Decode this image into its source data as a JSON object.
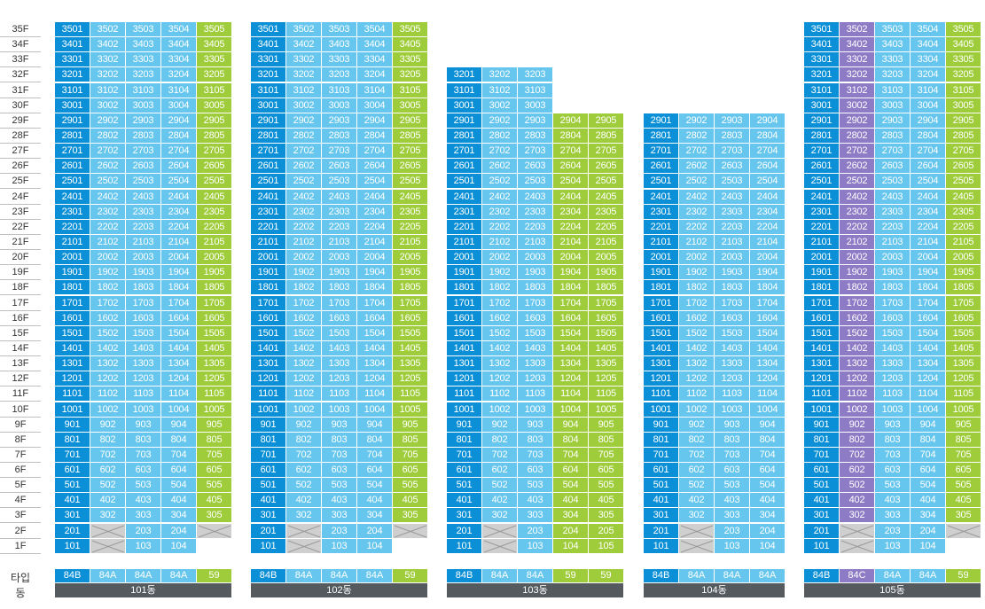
{
  "floor_labels": [
    "35F",
    "34F",
    "33F",
    "32F",
    "31F",
    "30F",
    "29F",
    "28F",
    "27F",
    "26F",
    "25F",
    "24F",
    "23F",
    "22F",
    "21F",
    "20F",
    "19F",
    "18F",
    "17F",
    "16F",
    "15F",
    "14F",
    "13F",
    "12F",
    "11F",
    "10F",
    "9F",
    "8F",
    "7F",
    "6F",
    "5F",
    "4F",
    "3F",
    "2F",
    "1F"
  ],
  "type_row_label": "타입",
  "building_row_label": "동",
  "colors": {
    "dark": "#0b8fd6",
    "light": "#66c6ee",
    "green": "#9fcc3b",
    "purple": "#8d7bc5",
    "empty": "#cfcfcf",
    "bar": "#555a5f"
  },
  "buildings": [
    {
      "name": "101동",
      "types": [
        {
          "label": "84B",
          "color": "dark"
        },
        {
          "label": "84A",
          "color": "light"
        },
        {
          "label": "84A",
          "color": "light"
        },
        {
          "label": "84A",
          "color": "light"
        },
        {
          "label": "59",
          "color": "green"
        }
      ],
      "top_floor": 35,
      "special": {
        "2": [
          "201",
          "x",
          "203",
          "204",
          "x"
        ],
        "1": [
          "101",
          "x",
          "103",
          "104",
          ""
        ]
      }
    },
    {
      "name": "102동",
      "types": [
        {
          "label": "84B",
          "color": "dark"
        },
        {
          "label": "84A",
          "color": "light"
        },
        {
          "label": "84A",
          "color": "light"
        },
        {
          "label": "84A",
          "color": "light"
        },
        {
          "label": "59",
          "color": "green"
        }
      ],
      "top_floor": 35,
      "special": {
        "2": [
          "201",
          "x",
          "203",
          "204",
          "x"
        ],
        "1": [
          "101",
          "x",
          "103",
          "104",
          ""
        ]
      }
    },
    {
      "name": "103동",
      "types": [
        {
          "label": "84B",
          "color": "dark"
        },
        {
          "label": "84A",
          "color": "light"
        },
        {
          "label": "84A",
          "color": "light"
        },
        {
          "label": "59",
          "color": "green"
        },
        {
          "label": "59",
          "color": "green"
        }
      ],
      "top_floor": 32,
      "col_top": [
        32,
        32,
        32,
        29,
        29
      ],
      "special": {
        "2": [
          "201",
          "x",
          "203",
          "204",
          "205"
        ],
        "1": [
          "101",
          "x",
          "103",
          "104",
          "105"
        ]
      }
    },
    {
      "name": "104동",
      "types": [
        {
          "label": "84B",
          "color": "dark"
        },
        {
          "label": "84A",
          "color": "light"
        },
        {
          "label": "84A",
          "color": "light"
        },
        {
          "label": "84A",
          "color": "light"
        }
      ],
      "top_floor": 29,
      "special": {
        "2": [
          "201",
          "x",
          "203",
          "204"
        ],
        "1": [
          "101",
          "x",
          "103",
          "104"
        ]
      }
    },
    {
      "name": "105동",
      "types": [
        {
          "label": "84B",
          "color": "dark"
        },
        {
          "label": "84C",
          "color": "purple"
        },
        {
          "label": "84A",
          "color": "light"
        },
        {
          "label": "84A",
          "color": "light"
        },
        {
          "label": "59",
          "color": "green"
        }
      ],
      "top_floor": 35,
      "special": {
        "2": [
          "201",
          "x",
          "203",
          "204",
          "x"
        ],
        "1": [
          "101",
          "x",
          "103",
          "104",
          ""
        ]
      }
    }
  ]
}
